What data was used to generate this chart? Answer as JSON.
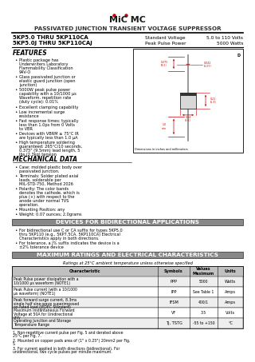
{
  "title_main": "PASSIVATED JUNCTION TRANSIENT VOLTAGE SUPPRESSOR",
  "part1": "5KP5.0 THRU 5KP110CA",
  "part2": "5KP5.0J THRU 5KP110CAJ",
  "spec1_label": "Standard Voltage",
  "spec1_value": "5.0 to 110 Volts",
  "spec2_label": "Peak Pulse Power",
  "spec2_value": "5000 Watts",
  "features_title": "FEATURES",
  "features": [
    "Plastic package has Underwriters Laboratory Flammability Classification 94V-O",
    "Glass passivated junction or elastic guard junction (open junction)",
    "5000W peak pulse power capability with a 10/1000 μs Waveform, repetition rate (duty cycle): 0.01%",
    "Excellent clamping capability",
    "Low incremental surge resistance",
    "Fast response times: typically less than 1.0ps from 0 Volts to VBR",
    "Devices with VBRM ≥ 75°C IR are typically less than 1.0 μA",
    "High temperature soldering guaranteed: 265°C/10 seconds, 0.375\" (9.5mm) lead length, 5 lbs.(2.3kg) tension"
  ],
  "mech_title": "MECHANICAL DATA",
  "mech": [
    "Case: molded plastic body over passivated junction.",
    "Terminals: Solder plated axial leads, solderable per MIL-STD-750, Method 2026",
    "Polarity: The color bands denotes the cathode, which is plus (+) with respect to the anode under normal TVS operation.",
    "Mounting Position: any",
    "Weight: 0.07 ounces; 2.0grams"
  ],
  "bidir_title": "DEVICES FOR BIDIRECTIONAL APPLICATIONS",
  "bidir": [
    "For bidirectional use C or CA suffix for types 5KP5.0 thru 5KP110 (e.g., 5KP7.5CA, 5KP110CA) Electrical Characteristics apply in both directions.",
    "For tolerance, a J% suffix indicates the device is a ±2% tolerance device"
  ],
  "maxrating_title": "MAXIMUM RATINGS AND ELECTRICAL CHARACTERISTICS",
  "maxrating_sub": "Ratings at 25°C ambient temperature unless otherwise specified",
  "table_rows": [
    [
      "Peak Pulse power dissipation with a 10/1000 μs waveform (NOTE1)",
      "PPP",
      "5000",
      "Watts"
    ],
    [
      "Peak Pulse current (with a 10/1000 μs waveform) (NOTE1)",
      "IPP",
      "See Table 1",
      "Amps"
    ],
    [
      "Peak forward surge current, 8.3ms single half sine-wave superimposed on rated load (JEDEC Standard)",
      "IFSM",
      "400/1",
      "Amps"
    ],
    [
      "Maximum Instantaneous Forward Voltage at 50A for Unidirectional only",
      "VF",
      "3.5",
      "Volts"
    ],
    [
      "Operating Junction and Storage Temperature Range",
      "TJ, TSTG",
      "-55 to +150",
      "°C"
    ]
  ],
  "notes": [
    "1.  Non-repetitive current pulse per Fig. 5 and derated above 25°C per Fig. 7.",
    "2.  Mounted on copper pads area of (1\" x 0.25\") 20mm2 per Fig. 5.",
    "3.  For current applied in both directions (bidirectional). For unidirectional, two cycle pulses per minute maximum."
  ],
  "bg_color": "#ffffff",
  "text_color": "#000000",
  "red_color": "#cc0000",
  "gray_bg": "#c8c8c8"
}
